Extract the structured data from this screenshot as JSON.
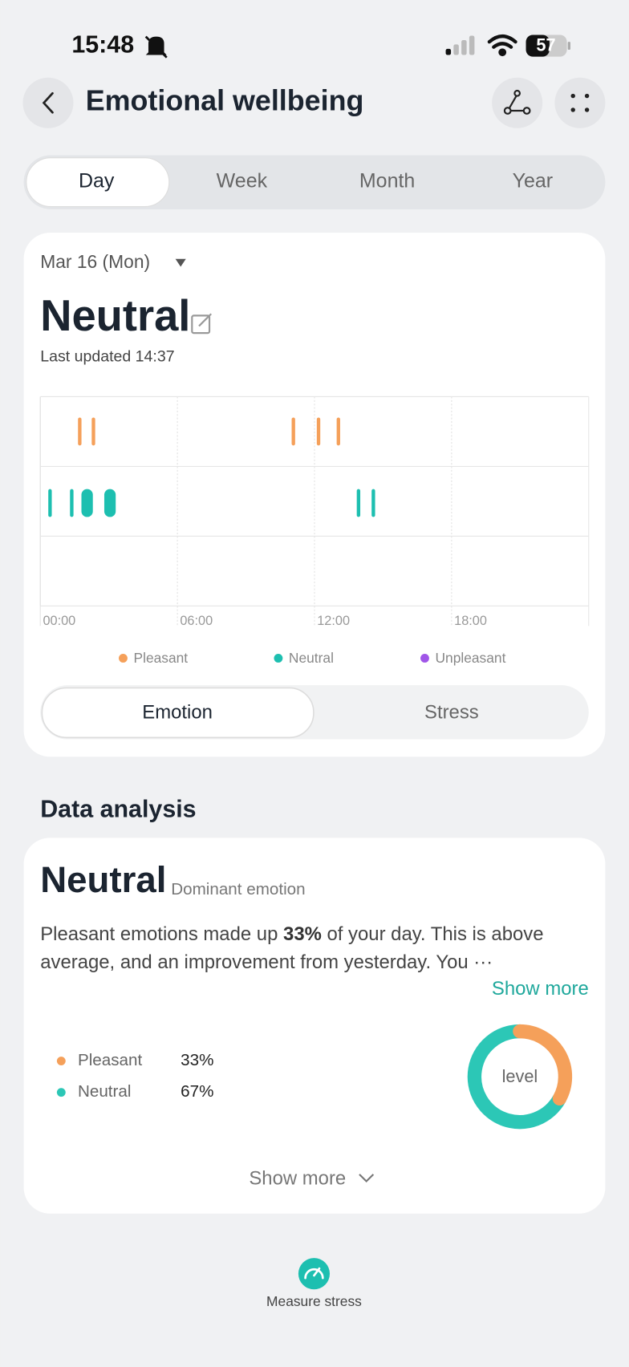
{
  "status": {
    "time": "15:48",
    "battery": "57"
  },
  "header": {
    "title": "Emotional wellbeing"
  },
  "tabs": {
    "items": [
      "Day",
      "Week",
      "Month",
      "Year"
    ],
    "active": 0
  },
  "summary": {
    "date": "Mar 16 (Mon)",
    "emotion": "Neutral",
    "updated": "Last updated 14:37"
  },
  "chart_data": [
    {
      "type": "timeline",
      "series": [
        {
          "name": "Pleasant",
          "color": "#f5a05a",
          "start": [
            1.65,
            2.25,
            11.0,
            12.1,
            12.97
          ],
          "end": [
            1.8,
            2.4,
            11.15,
            12.25,
            13.12
          ]
        },
        {
          "name": "Neutral",
          "color": "#1dbfb0",
          "start": [
            0.35,
            1.3,
            1.8,
            2.8,
            13.85,
            14.5
          ],
          "end": [
            0.5,
            1.45,
            2.3,
            3.3,
            14.0,
            14.65
          ]
        },
        {
          "name": "Unpleasant",
          "color": "#a056e8",
          "start": [],
          "end": []
        }
      ],
      "xlim": [
        0,
        24
      ],
      "xticks": [
        {
          "value": 0,
          "label": "00:00"
        },
        {
          "value": 6,
          "label": "06:00"
        },
        {
          "value": 12,
          "label": "12:00"
        },
        {
          "value": 18,
          "label": "18:00"
        }
      ],
      "grid": true
    },
    {
      "type": "pie",
      "categories": [
        "Pleasant",
        "Neutral"
      ],
      "values": [
        33,
        67
      ],
      "value_labels": [
        "33%",
        "67%"
      ],
      "colors": [
        "#f5a05a",
        "#2cc7b6"
      ],
      "center_label": "level"
    }
  ],
  "toggle": {
    "items": [
      "Emotion",
      "Stress"
    ],
    "active": 0
  },
  "analysis": {
    "heading": "Data analysis",
    "emotion": "Neutral",
    "caption": "Dominant emotion",
    "line1": [
      "Pleasant emotions made up ",
      "33%",
      " of your day. This is above"
    ],
    "line2": "average, and an improvement from yesterday. You ···",
    "show_more_link": "Show more",
    "show_more_button": "Show more"
  },
  "footer": {
    "action": "Measure stress"
  }
}
